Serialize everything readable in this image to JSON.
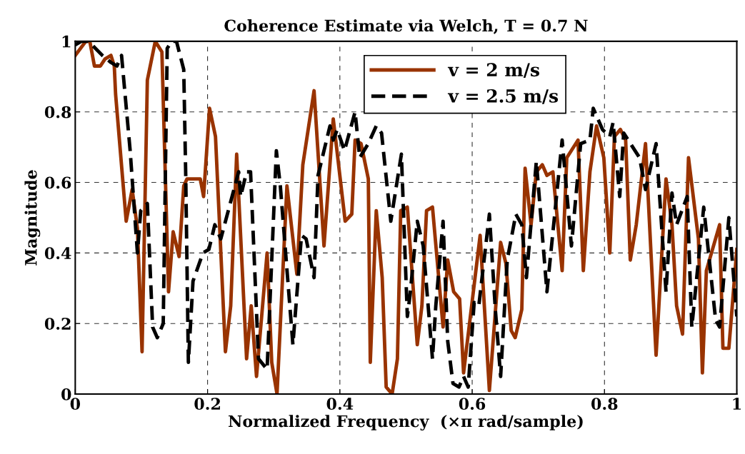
{
  "chart_data": {
    "type": "line",
    "title": "Coherence Estimate via Welch, T = 0.7 N",
    "xlabel": "Normalized Frequency  (×π rad/sample)",
    "ylabel": "Magnitude",
    "xlim": [
      0,
      1
    ],
    "ylim": [
      0,
      1
    ],
    "xticks": [
      0,
      0.2,
      0.4,
      0.6,
      0.8,
      1
    ],
    "yticks": [
      0,
      0.2,
      0.4,
      0.6,
      0.8,
      1
    ],
    "grid": true,
    "legend": "top right",
    "series": [
      {
        "name": "v = 2 m/s",
        "color": "#993300",
        "line_style": "solid",
        "x": [
          0,
          0.016,
          0.022,
          0.029,
          0.038,
          0.045,
          0.054,
          0.059,
          0.061,
          0.077,
          0.086,
          0.094,
          0.101,
          0.109,
          0.121,
          0.131,
          0.141,
          0.148,
          0.157,
          0.164,
          0.169,
          0.189,
          0.194,
          0.203,
          0.212,
          0.227,
          0.235,
          0.244,
          0.259,
          0.266,
          0.274,
          0.29,
          0.297,
          0.305,
          0.32,
          0.335,
          0.344,
          0.361,
          0.376,
          0.39,
          0.408,
          0.418,
          0.423,
          0.432,
          0.443,
          0.446,
          0.455,
          0.464,
          0.47,
          0.479,
          0.487,
          0.492,
          0.502,
          0.517,
          0.524,
          0.531,
          0.54,
          0.556,
          0.563,
          0.572,
          0.581,
          0.587,
          0.612,
          0.626,
          0.643,
          0.651,
          0.659,
          0.665,
          0.675,
          0.68,
          0.689,
          0.697,
          0.706,
          0.713,
          0.722,
          0.736,
          0.743,
          0.76,
          0.768,
          0.778,
          0.788,
          0.799,
          0.808,
          0.815,
          0.824,
          0.832,
          0.839,
          0.848,
          0.862,
          0.878,
          0.893,
          0.902,
          0.909,
          0.918,
          0.927,
          0.942,
          0.948,
          0.954,
          0.974,
          0.979,
          0.988,
          1
        ],
        "values": [
          0.96,
          1,
          1,
          0.93,
          0.93,
          0.95,
          0.96,
          0.93,
          0.85,
          0.49,
          0.58,
          0.47,
          0.12,
          0.89,
          1,
          0.97,
          0.29,
          0.46,
          0.39,
          0.59,
          0.61,
          0.61,
          0.56,
          0.81,
          0.73,
          0.12,
          0.25,
          0.68,
          0.1,
          0.25,
          0.05,
          0.4,
          0.09,
          0,
          0.59,
          0.34,
          0.65,
          0.86,
          0.42,
          0.78,
          0.49,
          0.51,
          0.72,
          0.71,
          0.61,
          0.09,
          0.52,
          0.33,
          0.02,
          0,
          0.1,
          0.52,
          0.53,
          0.14,
          0.25,
          0.52,
          0.53,
          0.19,
          0.38,
          0.29,
          0.27,
          0.06,
          0.45,
          0.01,
          0.43,
          0.37,
          0.18,
          0.16,
          0.24,
          0.64,
          0.48,
          0.63,
          0.65,
          0.62,
          0.63,
          0.35,
          0.67,
          0.72,
          0.35,
          0.63,
          0.76,
          0.67,
          0.4,
          0.73,
          0.75,
          0.72,
          0.38,
          0.48,
          0.71,
          0.11,
          0.61,
          0.48,
          0.25,
          0.17,
          0.67,
          0.44,
          0.06,
          0.35,
          0.48,
          0.13,
          0.13,
          0.41
        ]
      },
      {
        "name": "v = 2.5 m/s",
        "color": "#000000",
        "line_style": "dashed",
        "x": [
          0,
          0.009,
          0.02,
          0.041,
          0.054,
          0.063,
          0.07,
          0.083,
          0.094,
          0.099,
          0.109,
          0.117,
          0.124,
          0.133,
          0.139,
          0.146,
          0.153,
          0.164,
          0.167,
          0.171,
          0.178,
          0.193,
          0.202,
          0.211,
          0.22,
          0.247,
          0.25,
          0.259,
          0.265,
          0.277,
          0.29,
          0.304,
          0.31,
          0.329,
          0.342,
          0.349,
          0.361,
          0.367,
          0.385,
          0.39,
          0.396,
          0.407,
          0.423,
          0.43,
          0.443,
          0.455,
          0.463,
          0.477,
          0.493,
          0.502,
          0.506,
          0.517,
          0.526,
          0.54,
          0.545,
          0.556,
          0.563,
          0.571,
          0.58,
          0.587,
          0.594,
          0.603,
          0.61,
          0.626,
          0.635,
          0.643,
          0.653,
          0.666,
          0.675,
          0.682,
          0.697,
          0.713,
          0.736,
          0.75,
          0.764,
          0.778,
          0.783,
          0.797,
          0.808,
          0.813,
          0.823,
          0.829,
          0.853,
          0.862,
          0.878,
          0.893,
          0.902,
          0.909,
          0.925,
          0.932,
          0.95,
          0.968,
          0.974,
          0.988,
          1
        ],
        "values": [
          0.99,
          1,
          1,
          0.96,
          0.94,
          0.93,
          0.96,
          0.69,
          0.4,
          0.52,
          0.54,
          0.19,
          0.16,
          0.2,
          0.98,
          1,
          1,
          0.92,
          0.62,
          0.09,
          0.32,
          0.4,
          0.41,
          0.48,
          0.44,
          0.63,
          0.56,
          0.63,
          0.63,
          0.1,
          0.07,
          0.69,
          0.59,
          0.14,
          0.45,
          0.44,
          0.33,
          0.62,
          0.76,
          0.72,
          0.75,
          0.69,
          0.8,
          0.67,
          0.71,
          0.76,
          0.74,
          0.49,
          0.68,
          0.22,
          0.28,
          0.49,
          0.42,
          0.1,
          0.25,
          0.49,
          0.15,
          0.03,
          0.02,
          0.05,
          0.02,
          0.26,
          0.25,
          0.51,
          0.24,
          0.05,
          0.38,
          0.51,
          0.48,
          0.33,
          0.66,
          0.29,
          0.72,
          0.42,
          0.71,
          0.72,
          0.81,
          0.75,
          0.73,
          0.77,
          0.56,
          0.74,
          0.67,
          0.58,
          0.71,
          0.29,
          0.57,
          0.48,
          0.56,
          0.19,
          0.53,
          0.21,
          0.19,
          0.5,
          0.22
        ]
      }
    ]
  }
}
